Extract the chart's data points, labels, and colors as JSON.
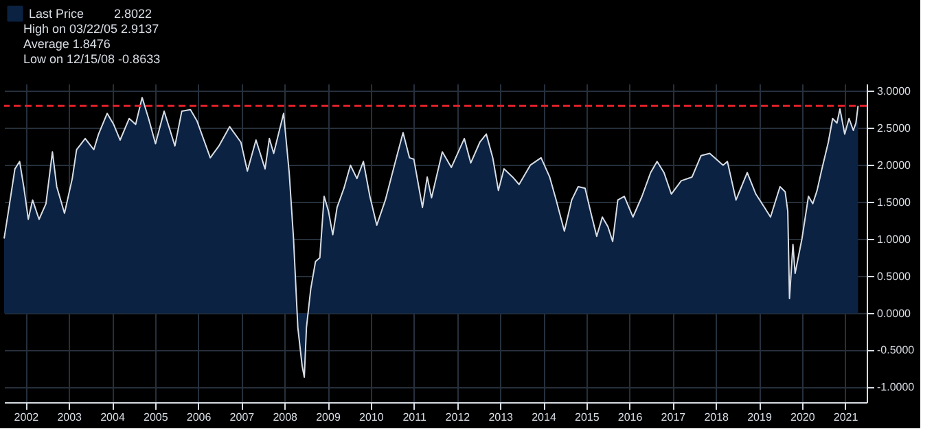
{
  "chart_data": {
    "type": "area",
    "x": [
      2002.0,
      2002.1,
      2002.25,
      2002.36,
      2002.46,
      2002.56,
      2002.66,
      2002.81,
      2002.97,
      2003.12,
      2003.22,
      2003.4,
      2003.58,
      2003.68,
      2003.88,
      2004.08,
      2004.19,
      2004.39,
      2004.54,
      2004.69,
      2004.9,
      2005.05,
      2005.2,
      2005.35,
      2005.51,
      2005.71,
      2005.96,
      2006.12,
      2006.32,
      2006.47,
      2006.78,
      2006.98,
      2007.23,
      2007.49,
      2007.64,
      2007.84,
      2008.05,
      2008.15,
      2008.25,
      2008.48,
      2008.61,
      2008.71,
      2008.81,
      2008.91,
      2008.96,
      2009.01,
      2009.11,
      2009.22,
      2009.32,
      2009.42,
      2009.52,
      2009.62,
      2009.72,
      2009.88,
      2010.03,
      2010.18,
      2010.33,
      2010.48,
      2010.64,
      2010.84,
      2011.05,
      2011.25,
      2011.4,
      2011.5,
      2011.7,
      2011.81,
      2011.91,
      2012.16,
      2012.37,
      2012.67,
      2012.82,
      2013.03,
      2013.18,
      2013.33,
      2013.46,
      2013.59,
      2013.79,
      2013.94,
      2014.2,
      2014.45,
      2014.65,
      2014.8,
      2014.99,
      2015.16,
      2015.31,
      2015.47,
      2015.62,
      2015.74,
      2015.87,
      2016.0,
      2016.11,
      2016.23,
      2016.38,
      2016.58,
      2016.79,
      2016.99,
      2017.14,
      2017.3,
      2017.47,
      2017.7,
      2017.95,
      2018.16,
      2018.36,
      2018.67,
      2018.77,
      2018.97,
      2019.23,
      2019.43,
      2019.63,
      2019.77,
      2019.99,
      2020.11,
      2020.17,
      2020.21,
      2020.29,
      2020.34,
      2020.5,
      2020.65,
      2020.75,
      2020.85,
      2020.95,
      2021.11,
      2021.21,
      2021.31,
      2021.38,
      2021.49,
      2021.59,
      2021.69,
      2021.75,
      2021.8
    ],
    "series": [
      {
        "name": "Last Price",
        "color": "#0b2242",
        "values": [
          1.01,
          1.38,
          1.95,
          2.05,
          1.69,
          1.27,
          1.53,
          1.27,
          1.48,
          2.18,
          1.71,
          1.35,
          1.82,
          2.21,
          2.36,
          2.21,
          2.42,
          2.7,
          2.55,
          2.34,
          2.63,
          2.55,
          2.9137,
          2.63,
          2.29,
          2.73,
          2.26,
          2.73,
          2.75,
          2.6,
          2.1,
          2.26,
          2.52,
          2.31,
          1.92,
          2.34,
          1.95,
          2.36,
          2.16,
          2.7,
          1.9,
          1.01,
          -0.19,
          -0.71,
          -0.8633,
          -0.19,
          0.33,
          0.7,
          0.75,
          1.58,
          1.38,
          1.06,
          1.43,
          1.69,
          2.0,
          1.82,
          2.05,
          1.58,
          1.19,
          1.53,
          2.0,
          2.44,
          2.1,
          2.08,
          1.43,
          1.84,
          1.56,
          2.18,
          1.97,
          2.36,
          2.03,
          2.31,
          2.42,
          2.1,
          1.66,
          1.95,
          1.84,
          1.74,
          2.0,
          2.1,
          1.84,
          1.53,
          1.11,
          1.53,
          1.71,
          1.69,
          1.32,
          1.04,
          1.3,
          1.17,
          0.97,
          1.53,
          1.58,
          1.3,
          1.58,
          1.9,
          2.05,
          1.9,
          1.61,
          1.79,
          1.84,
          2.13,
          2.16,
          2.0,
          2.05,
          1.53,
          1.9,
          1.61,
          1.43,
          1.3,
          1.71,
          1.64,
          1.38,
          0.2,
          0.93,
          0.54,
          1.01,
          1.58,
          1.48,
          1.66,
          1.92,
          2.31,
          2.63,
          2.57,
          2.76,
          2.42,
          2.63,
          2.47,
          2.57,
          2.8022
        ]
      }
    ],
    "xlim": [
      2002,
      2022
    ],
    "xticks": [
      {
        "value": 2002.5,
        "label": "2002"
      },
      {
        "value": 2003.5,
        "label": "2003"
      },
      {
        "value": 2004.5,
        "label": "2004"
      },
      {
        "value": 2005.5,
        "label": "2005"
      },
      {
        "value": 2006.5,
        "label": "2006"
      },
      {
        "value": 2007.5,
        "label": "2007"
      },
      {
        "value": 2008.5,
        "label": "2008"
      },
      {
        "value": 2009.5,
        "label": "2009"
      },
      {
        "value": 2010.5,
        "label": "2010"
      },
      {
        "value": 2011.5,
        "label": "2011"
      },
      {
        "value": 2012.5,
        "label": "2012"
      },
      {
        "value": 2013.5,
        "label": "2013"
      },
      {
        "value": 2014.5,
        "label": "2014"
      },
      {
        "value": 2015.5,
        "label": "2015"
      },
      {
        "value": 2016.5,
        "label": "2016"
      },
      {
        "value": 2017.5,
        "label": "2017"
      },
      {
        "value": 2018.5,
        "label": "2018"
      },
      {
        "value": 2019.5,
        "label": "2019"
      },
      {
        "value": 2020.5,
        "label": "2020"
      },
      {
        "value": 2021.5,
        "label": "2021"
      }
    ],
    "ylim": [
      -1.2,
      3.1
    ],
    "yticks": [
      {
        "value": -1,
        "label": "-1.0000"
      },
      {
        "value": -0.5,
        "label": "-0.5000"
      },
      {
        "value": 0,
        "label": "0.0000"
      },
      {
        "value": 0.5,
        "label": "0.5000"
      },
      {
        "value": 1,
        "label": "1.0000"
      },
      {
        "value": 1.5,
        "label": "1.5000"
      },
      {
        "value": 2,
        "label": "2.0000"
      },
      {
        "value": 2.5,
        "label": "2.5000"
      },
      {
        "value": 3,
        "label": "3.0000"
      }
    ],
    "ref_lines": [
      {
        "axis": "y",
        "value": 2.8022,
        "color": "#e0202a",
        "line_style": "dashed"
      }
    ],
    "annotations": [
      "2.8022",
      "High on 03/22/05  2.9137",
      "Average  1.8476",
      "Low on 12/15/08  -0.8633"
    ],
    "grid": true,
    "legend": "top left"
  }
}
